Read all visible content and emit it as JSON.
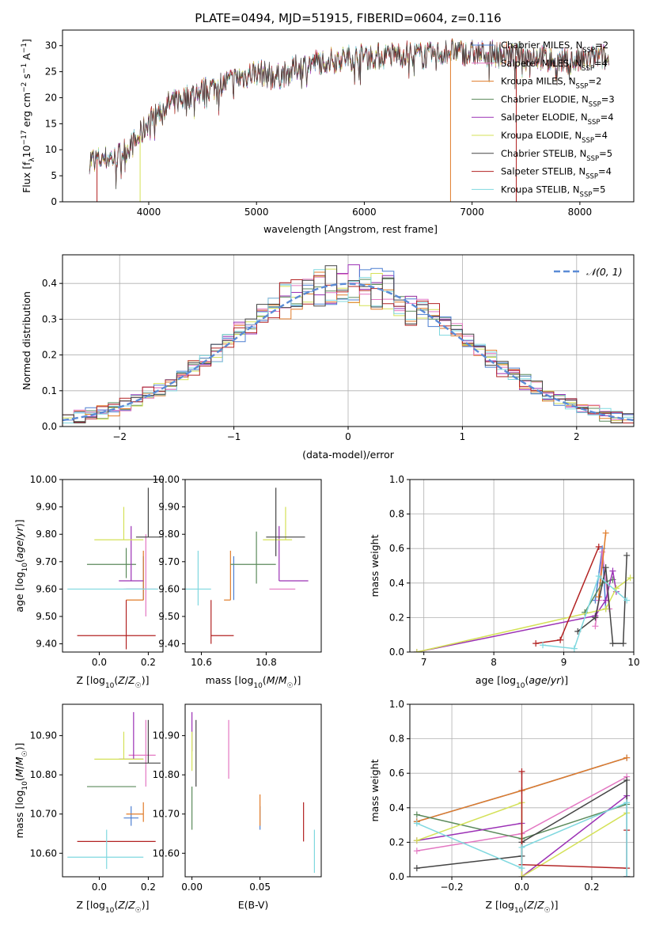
{
  "figure": {
    "title": "PLATE=0494, MJD=51915, FIBERID=0604, z=0.116"
  },
  "colors": {
    "Chabrier MILES": "#4c7fd1",
    "Salpeter MILES": "#e377c2",
    "Kroupa MILES": "#e07b29",
    "Chabrier ELODIE": "#5b8a5b",
    "Salpeter ELODIE": "#9b30b5",
    "Kroupa ELODIE": "#d4e157",
    "Chabrier STELIB": "#444444",
    "Salpeter STELIB": "#b22222",
    "Kroupa STELIB": "#7fd8df",
    "normal": "#5b8bd6"
  },
  "chart_data": [
    {
      "id": "spectrum",
      "type": "line",
      "xlabel": "wavelength [Angstrom, rest frame]",
      "ylabel": "Flux [f",
      "ylabel_sub": "λ",
      "ylabel_mid": "10",
      "ylabel_sup1": "−17",
      "ylabel_rest": " erg cm",
      "ylabel_sup2": "−2",
      "ylabel_s": " s",
      "ylabel_sup3": "−1",
      "ylabel_a": " A",
      "ylabel_sup4": "−1",
      "ylabel_end": "]",
      "xlim": [
        3200,
        8500
      ],
      "ylim": [
        0,
        33
      ],
      "xticks": [
        4000,
        5000,
        6000,
        7000,
        8000
      ],
      "yticks": [
        0,
        5,
        10,
        15,
        20,
        25,
        30
      ],
      "continuum": [
        [
          3450,
          8.0
        ],
        [
          3700,
          8.5
        ],
        [
          3900,
          12.0
        ],
        [
          4000,
          15.5
        ],
        [
          4200,
          19.0
        ],
        [
          4400,
          20.5
        ],
        [
          4600,
          22.0
        ],
        [
          4800,
          23.5
        ],
        [
          5000,
          25.0
        ],
        [
          5200,
          24.0
        ],
        [
          5400,
          26.0
        ],
        [
          5600,
          27.0
        ],
        [
          5800,
          27.5
        ],
        [
          6000,
          28.0
        ],
        [
          6200,
          28.0
        ],
        [
          6400,
          28.5
        ],
        [
          6600,
          28.0
        ],
        [
          6800,
          29.0
        ],
        [
          7000,
          28.5
        ],
        [
          7200,
          28.5
        ],
        [
          7400,
          28.0
        ],
        [
          7600,
          28.0
        ],
        [
          7800,
          27.0
        ],
        [
          8000,
          27.0
        ],
        [
          8200,
          28.0
        ],
        [
          8270,
          27.0
        ]
      ],
      "legend": [
        {
          "name": "Chabrier MILES",
          "nssp": "2"
        },
        {
          "name": "Salpeter MILES",
          "nssp": "4"
        },
        {
          "name": "Kroupa MILES",
          "nssp": "2"
        },
        {
          "name": "Chabrier ELODIE",
          "nssp": "3"
        },
        {
          "name": "Salpeter ELODIE",
          "nssp": "4"
        },
        {
          "name": "Kroupa ELODIE",
          "nssp": "4"
        },
        {
          "name": "Chabrier STELIB",
          "nssp": "5"
        },
        {
          "name": "Salpeter STELIB",
          "nssp": "4"
        },
        {
          "name": "Kroupa STELIB",
          "nssp": "5"
        }
      ],
      "legend_nssp_label": "N",
      "legend_nssp_sub": "SSP",
      "legend_position": "upper right"
    },
    {
      "id": "residuals",
      "type": "histogram",
      "xlabel": "(data-model)/error",
      "ylabel": "Normed distribution",
      "xlim": [
        -2.5,
        2.5
      ],
      "ylim": [
        0,
        0.48
      ],
      "xticks": [
        -2,
        -1,
        0,
        1,
        2
      ],
      "yticks": [
        0.0,
        0.1,
        0.2,
        0.3,
        0.4
      ],
      "bin_width": 0.1,
      "gaussian_label": "𝒩(0, 1)",
      "grid": true
    },
    {
      "id": "age-vs-Z",
      "type": "errorbar",
      "xlabel": "Z [log10(Z/Z☉)]",
      "ylabel": "age  [log10(age/yr)]",
      "xlim": [
        -0.15,
        0.26
      ],
      "ylim": [
        9.37,
        10.0
      ],
      "xticks": [
        0.0,
        0.2
      ],
      "yticks": [
        9.4,
        9.5,
        9.6,
        9.7,
        9.8,
        9.9,
        10.0
      ],
      "points": [
        {
          "series": "Chabrier MILES",
          "x": 0.18,
          "y": 9.6,
          "xerr": [
            0.07,
            0.0
          ],
          "yerr": [
            0.04,
            0.12
          ]
        },
        {
          "series": "Salpeter MILES",
          "x": 0.19,
          "y": 9.6,
          "xerr": [
            0.09,
            0.04
          ],
          "yerr": [
            0.1,
            0.2
          ]
        },
        {
          "series": "Kroupa MILES",
          "x": 0.18,
          "y": 9.56,
          "xerr": [
            0.07,
            0.0
          ],
          "yerr": [
            0.0,
            0.18
          ]
        },
        {
          "series": "Chabrier ELODIE",
          "x": 0.11,
          "y": 9.69,
          "xerr": [
            0.16,
            0.04
          ],
          "yerr": [
            0.05,
            0.06
          ]
        },
        {
          "series": "Salpeter ELODIE",
          "x": 0.13,
          "y": 9.63,
          "xerr": [
            0.05,
            0.05
          ],
          "yerr": [
            0.0,
            0.2
          ]
        },
        {
          "series": "Kroupa ELODIE",
          "x": 0.1,
          "y": 9.78,
          "xerr": [
            0.12,
            0.08
          ],
          "yerr": [
            0.0,
            0.12
          ]
        },
        {
          "series": "Chabrier STELIB",
          "x": 0.2,
          "y": 9.79,
          "xerr": [
            0.05,
            0.05
          ],
          "yerr": [
            0.0,
            0.18
          ]
        },
        {
          "series": "Salpeter STELIB",
          "x": 0.11,
          "y": 9.43,
          "xerr": [
            0.2,
            0.12
          ],
          "yerr": [
            0.05,
            0.13
          ]
        },
        {
          "series": "Kroupa STELIB",
          "x": 0.03,
          "y": 9.6,
          "xerr": [
            0.16,
            0.21
          ],
          "yerr": [
            0.0,
            0.0
          ]
        }
      ]
    },
    {
      "id": "age-vs-mass",
      "type": "errorbar",
      "xlabel": "mass [log10(M/M☉)]",
      "ylabel": "",
      "xlim": [
        10.55,
        10.97
      ],
      "ylim": [
        9.37,
        10.0
      ],
      "xticks": [
        10.6,
        10.8
      ],
      "yticks": [
        9.4,
        9.5,
        9.6,
        9.7,
        9.8,
        9.9,
        10.0
      ],
      "points": [
        {
          "series": "Chabrier MILES",
          "x": 10.7,
          "y": 9.6,
          "xerr": [
            0.0,
            0.0
          ],
          "yerr": [
            0.04,
            0.12
          ]
        },
        {
          "series": "Salpeter MILES",
          "x": 10.85,
          "y": 9.6,
          "xerr": [
            0.04,
            0.04
          ],
          "yerr": [
            0.0,
            0.0
          ]
        },
        {
          "series": "Kroupa MILES",
          "x": 10.69,
          "y": 9.56,
          "xerr": [
            0.02,
            0.0
          ],
          "yerr": [
            0.0,
            0.18
          ]
        },
        {
          "series": "Chabrier ELODIE",
          "x": 10.77,
          "y": 9.69,
          "xerr": [
            0.08,
            0.06
          ],
          "yerr": [
            0.07,
            0.12
          ]
        },
        {
          "series": "Salpeter ELODIE",
          "x": 10.84,
          "y": 9.63,
          "xerr": [
            0.0,
            0.09
          ],
          "yerr": [
            0.0,
            0.2
          ]
        },
        {
          "series": "Kroupa ELODIE",
          "x": 10.86,
          "y": 9.78,
          "xerr": [
            0.07,
            0.02
          ],
          "yerr": [
            0.0,
            0.12
          ]
        },
        {
          "series": "Chabrier STELIB",
          "x": 10.83,
          "y": 9.79,
          "xerr": [
            0.03,
            0.09
          ],
          "yerr": [
            0.07,
            0.18
          ]
        },
        {
          "series": "Salpeter STELIB",
          "x": 10.63,
          "y": 9.43,
          "xerr": [
            0.0,
            0.07
          ],
          "yerr": [
            0.03,
            0.13
          ]
        },
        {
          "series": "Kroupa STELIB",
          "x": 10.59,
          "y": 9.6,
          "xerr": [
            0.04,
            0.04
          ],
          "yerr": [
            0.06,
            0.14
          ]
        }
      ]
    },
    {
      "id": "weight-vs-age",
      "type": "line",
      "xlabel": "age  [log10(age/yr)]",
      "ylabel": "mass weight",
      "xlim": [
        6.8,
        10.0
      ],
      "ylim": [
        0,
        1.0
      ],
      "xticks": [
        7,
        8,
        9,
        10
      ],
      "yticks": [
        0.0,
        0.2,
        0.4,
        0.6,
        0.8,
        1.0
      ],
      "grid": true,
      "series": [
        {
          "name": "Chabrier MILES",
          "x": [
            9.45,
            9.55,
            9.6
          ],
          "y": [
            0.3,
            0.6,
            0.25
          ]
        },
        {
          "name": "Salpeter MILES",
          "x": [
            9.45,
            9.5,
            9.55,
            9.65
          ],
          "y": [
            0.15,
            0.3,
            0.58,
            0.25
          ]
        },
        {
          "name": "Kroupa MILES",
          "x": [
            9.5,
            9.6
          ],
          "y": [
            0.32,
            0.69
          ]
        },
        {
          "name": "Chabrier ELODIE",
          "x": [
            9.3,
            9.55,
            9.7
          ],
          "y": [
            0.23,
            0.4,
            0.42
          ]
        },
        {
          "name": "Salpeter ELODIE",
          "x": [
            6.9,
            9.45,
            9.6,
            9.7,
            9.75
          ],
          "y": [
            0.0,
            0.21,
            0.3,
            0.47,
            0.35
          ]
        },
        {
          "name": "Kroupa ELODIE",
          "x": [
            6.9,
            9.6,
            9.75,
            9.95
          ],
          "y": [
            0.0,
            0.25,
            0.37,
            0.43
          ]
        },
        {
          "name": "Chabrier STELIB",
          "x": [
            9.2,
            9.45,
            9.6,
            9.7,
            9.85,
            9.9
          ],
          "y": [
            0.12,
            0.2,
            0.49,
            0.05,
            0.05,
            0.56
          ]
        },
        {
          "name": "Salpeter STELIB",
          "x": [
            8.6,
            8.95,
            9.5
          ],
          "y": [
            0.05,
            0.07,
            0.61
          ]
        },
        {
          "name": "Kroupa STELIB",
          "x": [
            8.7,
            9.15,
            9.5,
            9.9
          ],
          "y": [
            0.04,
            0.02,
            0.44,
            0.3
          ]
        }
      ]
    },
    {
      "id": "mass-vs-Z",
      "type": "errorbar",
      "xlabel": "Z [log10(Z/Z☉)]",
      "ylabel": "mass [log10(M/M☉)]",
      "xlim": [
        -0.15,
        0.26
      ],
      "ylim": [
        10.54,
        10.98
      ],
      "xticks": [
        0.0,
        0.2
      ],
      "yticks": [
        10.6,
        10.7,
        10.8,
        10.9
      ],
      "points": [
        {
          "series": "Chabrier MILES",
          "x": 0.13,
          "y": 10.69,
          "xerr": [
            0.03,
            0.03
          ],
          "yerr": [
            0.02,
            0.03
          ]
        },
        {
          "series": "Salpeter MILES",
          "x": 0.19,
          "y": 10.85,
          "xerr": [
            0.07,
            0.04
          ],
          "yerr": [
            0.08,
            0.09
          ]
        },
        {
          "series": "Kroupa MILES",
          "x": 0.18,
          "y": 10.7,
          "xerr": [
            0.07,
            0.0
          ],
          "yerr": [
            0.02,
            0.03
          ]
        },
        {
          "series": "Chabrier ELODIE",
          "x": 0.11,
          "y": 10.77,
          "xerr": [
            0.16,
            0.04
          ],
          "yerr": [
            0.0,
            0.0
          ]
        },
        {
          "series": "Salpeter ELODIE",
          "x": 0.14,
          "y": 10.84,
          "xerr": [
            0.06,
            0.04
          ],
          "yerr": [
            0.0,
            0.12
          ]
        },
        {
          "series": "Kroupa ELODIE",
          "x": 0.1,
          "y": 10.84,
          "xerr": [
            0.12,
            0.08
          ],
          "yerr": [
            0.0,
            0.07
          ]
        },
        {
          "series": "Chabrier STELIB",
          "x": 0.2,
          "y": 10.83,
          "xerr": [
            0.08,
            0.05
          ],
          "yerr": [
            0.0,
            0.11
          ]
        },
        {
          "series": "Salpeter STELIB",
          "x": 0.11,
          "y": 10.63,
          "xerr": [
            0.2,
            0.12
          ],
          "yerr": [
            0.0,
            0.0
          ]
        },
        {
          "series": "Kroupa STELIB",
          "x": 0.03,
          "y": 10.59,
          "xerr": [
            0.16,
            0.15
          ],
          "yerr": [
            0.03,
            0.07
          ]
        }
      ]
    },
    {
      "id": "mass-vs-EBV",
      "type": "errorbar",
      "xlabel": "E(B-V)",
      "ylabel": "",
      "xlim": [
        -0.005,
        0.095
      ],
      "ylim": [
        10.54,
        10.98
      ],
      "xticks": [
        0.0,
        0.05
      ],
      "yticks": [
        10.6,
        10.7,
        10.8,
        10.9
      ],
      "points": [
        {
          "series": "Chabrier MILES",
          "x": 0.05,
          "y": 10.69,
          "xerr": [
            0.0,
            0.0
          ],
          "yerr": [
            0.03,
            0.03
          ]
        },
        {
          "series": "Salpeter MILES",
          "x": 0.027,
          "y": 10.86,
          "xerr": [
            0.0,
            0.0
          ],
          "yerr": [
            0.07,
            0.08
          ]
        },
        {
          "series": "Kroupa MILES",
          "x": 0.05,
          "y": 10.7,
          "xerr": [
            0.0,
            0.0
          ],
          "yerr": [
            0.03,
            0.05
          ]
        },
        {
          "series": "Chabrier ELODIE",
          "x": 0.0,
          "y": 10.77,
          "xerr": [
            0.0,
            0.0
          ],
          "yerr": [
            0.11,
            0.0
          ]
        },
        {
          "series": "Salpeter ELODIE",
          "x": 0.0,
          "y": 10.86,
          "xerr": [
            0.0,
            0.0
          ],
          "yerr": [
            0.0,
            0.1
          ]
        },
        {
          "series": "Kroupa ELODIE",
          "x": 0.0,
          "y": 10.84,
          "xerr": [
            0.0,
            0.0
          ],
          "yerr": [
            0.03,
            0.07
          ]
        },
        {
          "series": "Chabrier STELIB",
          "x": 0.003,
          "y": 10.86,
          "xerr": [
            0.0,
            0.0
          ],
          "yerr": [
            0.09,
            0.08
          ]
        },
        {
          "series": "Salpeter STELIB",
          "x": 0.082,
          "y": 10.68,
          "xerr": [
            0.0,
            0.0
          ],
          "yerr": [
            0.05,
            0.05
          ]
        },
        {
          "series": "Kroupa STELIB",
          "x": 0.09,
          "y": 10.6,
          "xerr": [
            0.0,
            0.0
          ],
          "yerr": [
            0.05,
            0.06
          ]
        }
      ]
    },
    {
      "id": "weight-vs-Z",
      "type": "line",
      "xlabel": "Z [log10(Z/Z☉)]",
      "ylabel": "mass weight",
      "xlim": [
        -0.32,
        0.32
      ],
      "ylim": [
        0,
        1.0
      ],
      "xticks": [
        -0.2,
        0.0,
        0.2
      ],
      "yticks": [
        0.0,
        0.2,
        0.4,
        0.6,
        0.8,
        1.0
      ],
      "grid": true,
      "series": [
        {
          "name": "Chabrier MILES",
          "x": [
            -0.3,
            0.0,
            0.3
          ],
          "y": [
            0.32,
            0.5,
            0.69
          ]
        },
        {
          "name": "Salpeter MILES",
          "x": [
            -0.3,
            0.0,
            0.3
          ],
          "y": [
            0.15,
            0.25,
            0.58
          ]
        },
        {
          "name": "Kroupa MILES",
          "x": [
            -0.3,
            0.0,
            0.3
          ],
          "y": [
            0.32,
            0.5,
            0.69
          ]
        },
        {
          "name": "Chabrier ELODIE",
          "x": [
            -0.3,
            0.0,
            0.3,
            0.3
          ],
          "y": [
            0.36,
            0.22,
            0.42,
            0.0
          ]
        },
        {
          "name": "Salpeter ELODIE",
          "x": [
            -0.3,
            0.0,
            0.0,
            0.3,
            0.3
          ],
          "y": [
            0.21,
            0.31,
            0.0,
            0.47,
            0.0
          ]
        },
        {
          "name": "Kroupa ELODIE",
          "x": [
            -0.3,
            0.0,
            0.0,
            0.3
          ],
          "y": [
            0.21,
            0.43,
            0.0,
            0.37
          ]
        },
        {
          "name": "Chabrier STELIB",
          "x": [
            -0.3,
            0.0,
            0.0,
            0.3,
            0.3
          ],
          "y": [
            0.05,
            0.12,
            0.2,
            0.56,
            0.0
          ]
        },
        {
          "name": "Salpeter STELIB",
          "x": [
            0.0,
            0.0,
            0.3,
            0.3
          ],
          "y": [
            0.61,
            0.07,
            0.05,
            0.27
          ]
        },
        {
          "name": "Kroupa STELIB",
          "x": [
            -0.3,
            0.0,
            0.0,
            0.3,
            0.3
          ],
          "y": [
            0.31,
            0.05,
            0.17,
            0.43,
            0.0
          ]
        }
      ]
    }
  ]
}
